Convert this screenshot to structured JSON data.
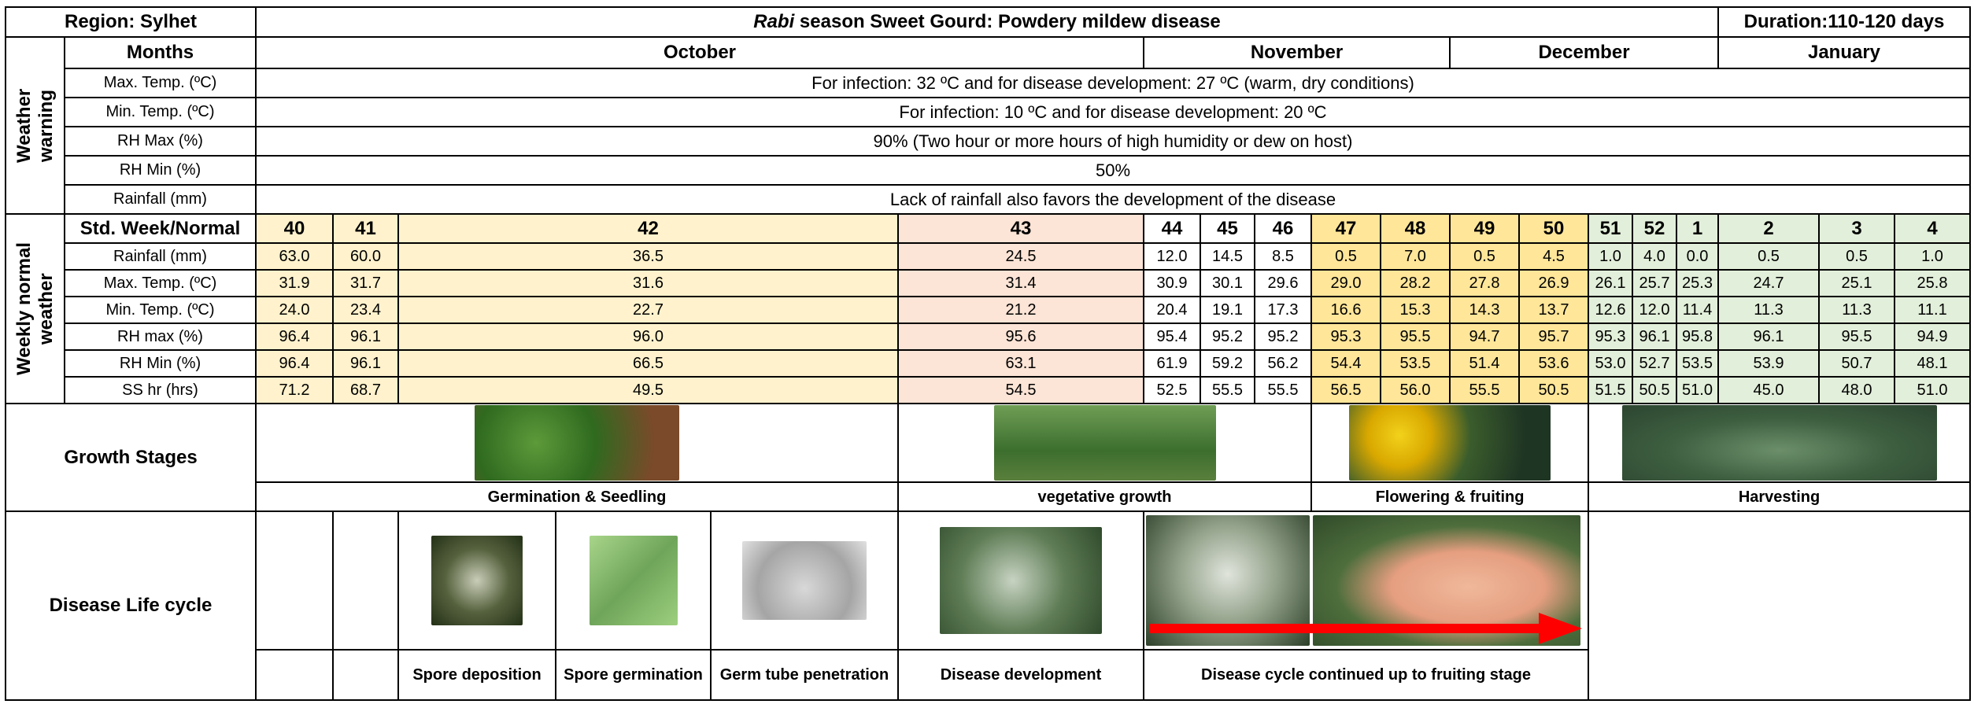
{
  "header": {
    "region": "Region: Sylhet",
    "title_italic": "Rabi",
    "title_rest": "season Sweet Gourd: Powdery mildew disease",
    "duration": "Duration:110-120 days"
  },
  "months": {
    "label": "Months",
    "names": [
      "October",
      "November",
      "December",
      "January"
    ]
  },
  "weather_warning": {
    "label": "Weather warning",
    "rows": [
      {
        "parameter": "Max. Temp. (ºC)",
        "text": "For infection: 32 ºC and for disease development: 27 ºC (warm, dry conditions)"
      },
      {
        "parameter": "Min. Temp. (ºC)",
        "text": "For infection: 10 ºC and for disease development: 20 ºC"
      },
      {
        "parameter": "RH Max (%)",
        "text": "90% (Two hour or more hours of high humidity or dew on host)"
      },
      {
        "parameter": "RH Min (%)",
        "text": "50%"
      },
      {
        "parameter": "Rainfall (mm)",
        "text": "Lack of rainfall also favors the development of the disease"
      }
    ]
  },
  "weekly_weather": {
    "label": "Weekly normal weather",
    "header": "Std. Week/Normal",
    "weeks": [
      40,
      41,
      42,
      43,
      44,
      45,
      46,
      47,
      48,
      49,
      50,
      51,
      52,
      1,
      2,
      3,
      4
    ],
    "rows": [
      {
        "parameter": "Rainfall (mm)",
        "values": [
          "63.0",
          "60.0",
          "36.5",
          "24.5",
          "12.0",
          "14.5",
          "8.5",
          "0.5",
          "7.0",
          "0.5",
          "4.5",
          "1.0",
          "4.0",
          "0.0",
          "0.5",
          "0.5",
          "1.0"
        ]
      },
      {
        "parameter": "Max. Temp. (ºC)",
        "values": [
          "31.9",
          "31.7",
          "31.6",
          "31.4",
          "30.9",
          "30.1",
          "29.6",
          "29.0",
          "28.2",
          "27.8",
          "26.9",
          "26.1",
          "25.7",
          "25.3",
          "24.7",
          "25.1",
          "25.8"
        ]
      },
      {
        "parameter": "Min. Temp. (ºC)",
        "values": [
          "24.0",
          "23.4",
          "22.7",
          "21.2",
          "20.4",
          "19.1",
          "17.3",
          "16.6",
          "15.3",
          "14.3",
          "13.7",
          "12.6",
          "12.0",
          "11.4",
          "11.3",
          "11.3",
          "11.1"
        ]
      },
      {
        "parameter": "RH max (%)",
        "values": [
          "96.4",
          "96.1",
          "96.0",
          "95.6",
          "95.4",
          "95.2",
          "95.2",
          "95.3",
          "95.5",
          "94.7",
          "95.7",
          "95.3",
          "96.1",
          "95.8",
          "96.1",
          "95.5",
          "94.9"
        ]
      },
      {
        "parameter": "RH Min (%)",
        "values": [
          "96.4",
          "96.1",
          "66.5",
          "63.1",
          "61.9",
          "59.2",
          "56.2",
          "54.4",
          "53.5",
          "51.4",
          "53.6",
          "53.0",
          "52.7",
          "53.5",
          "53.9",
          "50.7",
          "48.1"
        ]
      },
      {
        "parameter": "SS hr (hrs)",
        "values": [
          "71.2",
          "68.7",
          "49.5",
          "54.5",
          "52.5",
          "55.5",
          "55.5",
          "56.5",
          "56.0",
          "55.5",
          "50.5",
          "51.5",
          "50.5",
          "51.0",
          "45.0",
          "48.0",
          "51.0"
        ]
      }
    ]
  },
  "growth_stages": {
    "label": "Growth Stages",
    "stages": [
      "Germination & Seedling",
      "vegetative growth",
      "Flowering & fruiting",
      "Harvesting"
    ]
  },
  "disease_life_cycle": {
    "label": "Disease Life cycle",
    "stages": [
      "Spore deposition",
      "Spore germination",
      "Germ tube penetration",
      "Disease development",
      "Disease cycle continued up to fruiting stage"
    ]
  }
}
